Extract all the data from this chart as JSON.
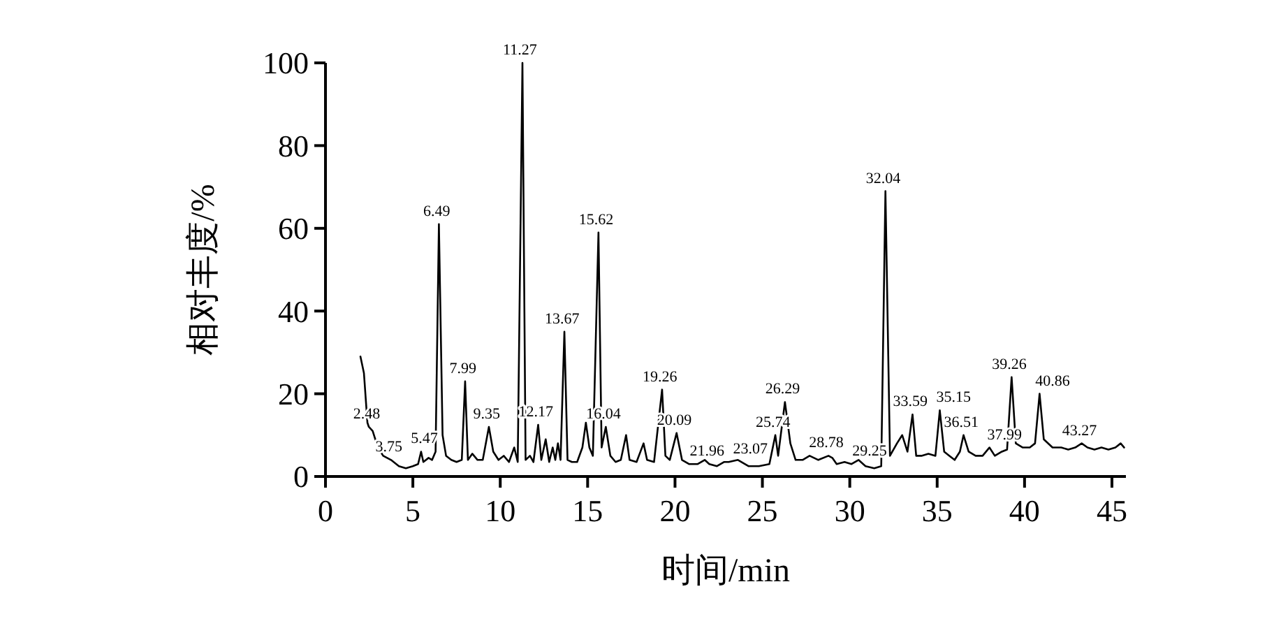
{
  "chart_data": {
    "type": "line",
    "xlabel": "时间/min",
    "ylabel": "相对丰度/%",
    "xlim": [
      0,
      45.8
    ],
    "xticks": [
      0,
      5,
      10,
      15,
      20,
      25,
      30,
      35,
      40,
      45
    ],
    "ylim": [
      0,
      100
    ],
    "yticks": [
      0,
      20,
      40,
      60,
      80,
      100
    ],
    "grid": false,
    "marker": "none",
    "line_style": "solid",
    "series": [
      {
        "color": "#000000",
        "x": [
          2.0,
          2.2,
          2.4,
          2.48,
          2.7,
          3.0,
          3.3,
          3.75,
          4.2,
          4.6,
          5.0,
          5.3,
          5.47,
          5.6,
          5.9,
          6.1,
          6.3,
          6.49,
          6.7,
          6.9,
          7.2,
          7.5,
          7.8,
          7.99,
          8.15,
          8.4,
          8.7,
          9.0,
          9.35,
          9.6,
          9.9,
          10.2,
          10.5,
          10.8,
          11.0,
          11.27,
          11.45,
          11.7,
          11.9,
          12.17,
          12.35,
          12.6,
          12.8,
          13.0,
          13.15,
          13.3,
          13.45,
          13.67,
          13.85,
          14.1,
          14.4,
          14.7,
          14.9,
          15.1,
          15.3,
          15.62,
          15.8,
          16.04,
          16.3,
          16.6,
          16.9,
          17.2,
          17.4,
          17.8,
          18.2,
          18.4,
          18.8,
          19.26,
          19.45,
          19.7,
          20.09,
          20.4,
          20.8,
          21.3,
          21.7,
          21.96,
          22.4,
          22.8,
          23.07,
          23.6,
          24.2,
          24.8,
          25.4,
          25.74,
          25.9,
          26.29,
          26.6,
          26.9,
          27.3,
          27.7,
          28.2,
          28.78,
          29.0,
          29.25,
          29.7,
          30.1,
          30.5,
          30.9,
          31.4,
          31.8,
          32.04,
          32.3,
          32.7,
          33.0,
          33.3,
          33.59,
          33.8,
          34.1,
          34.5,
          34.9,
          35.15,
          35.4,
          35.7,
          36.0,
          36.3,
          36.51,
          36.8,
          37.2,
          37.6,
          37.99,
          38.3,
          38.7,
          39.0,
          39.26,
          39.5,
          39.9,
          40.3,
          40.6,
          40.86,
          41.1,
          41.6,
          42.1,
          42.5,
          42.9,
          43.27,
          43.6,
          44.0,
          44.4,
          44.8,
          45.2,
          45.5,
          45.7
        ],
        "values": [
          29,
          25,
          13,
          12,
          11,
          7,
          5,
          4,
          2.5,
          2,
          2.5,
          3,
          6,
          3.5,
          4.5,
          4,
          6,
          61,
          10,
          5,
          4,
          3.5,
          4,
          23,
          4,
          5.5,
          4,
          4,
          12,
          6,
          4,
          5,
          3.5,
          7,
          3.5,
          100,
          4,
          5,
          3.5,
          12.5,
          4,
          9,
          3.5,
          7,
          4,
          8,
          4,
          35,
          4,
          3.5,
          3.5,
          7,
          13,
          7,
          5,
          59,
          7,
          12,
          5,
          3.5,
          4,
          10,
          4,
          3.5,
          8,
          4,
          3.5,
          21,
          5,
          4,
          10.5,
          4,
          3,
          3,
          4,
          3,
          2.5,
          3.5,
          3.5,
          4,
          2.5,
          2.5,
          3,
          10,
          5,
          18,
          8,
          4,
          4,
          5,
          4,
          5,
          4.5,
          3,
          3.5,
          3,
          4,
          2.5,
          2,
          2.5,
          69,
          5,
          8,
          10,
          6,
          15,
          5,
          5,
          5.5,
          5,
          16,
          6,
          5,
          4,
          6,
          10,
          6,
          5,
          5,
          7,
          5,
          6,
          6.5,
          24,
          8,
          7,
          7,
          8,
          20,
          9,
          7,
          7,
          6.5,
          7,
          8,
          7,
          6.5,
          7,
          6.5,
          7,
          8,
          7
        ]
      }
    ],
    "annotations": [
      {
        "text": "2.48",
        "x": 2.48,
        "y": 12
      },
      {
        "text": "3.75",
        "x": 3.75,
        "y": 4
      },
      {
        "text": "5.47",
        "x": 5.47,
        "y": 6
      },
      {
        "text": "6.49",
        "x": 6.49,
        "y": 61
      },
      {
        "text": "7.99",
        "x": 7.99,
        "y": 23
      },
      {
        "text": "9.35",
        "x": 9.35,
        "y": 12
      },
      {
        "text": "11.27",
        "x": 11.27,
        "y": 100
      },
      {
        "text": "12.17",
        "x": 12.17,
        "y": 12.5
      },
      {
        "text": "13.67",
        "x": 13.67,
        "y": 35
      },
      {
        "text": "15.62",
        "x": 15.62,
        "y": 59
      },
      {
        "text": "16.04",
        "x": 16.04,
        "y": 12
      },
      {
        "text": "19.26",
        "x": 19.26,
        "y": 21
      },
      {
        "text": "20.09",
        "x": 20.09,
        "y": 10.5
      },
      {
        "text": "21.96",
        "x": 21.96,
        "y": 3
      },
      {
        "text": "23.07",
        "x": 23.07,
        "y": 3.5
      },
      {
        "text": "25.74",
        "x": 25.74,
        "y": 10
      },
      {
        "text": "26.29",
        "x": 26.29,
        "y": 18
      },
      {
        "text": "28.78",
        "x": 28.78,
        "y": 5
      },
      {
        "text": "29.25",
        "x": 29.25,
        "y": 3
      },
      {
        "text": "32.04",
        "x": 32.04,
        "y": 69
      },
      {
        "text": "33.59",
        "x": 33.59,
        "y": 15
      },
      {
        "text": "35.15",
        "x": 35.15,
        "y": 16
      },
      {
        "text": "36.51",
        "x": 36.51,
        "y": 10
      },
      {
        "text": "37.99",
        "x": 37.99,
        "y": 7
      },
      {
        "text": "39.26",
        "x": 39.26,
        "y": 24
      },
      {
        "text": "40.86",
        "x": 40.86,
        "y": 20
      },
      {
        "text": "43.27",
        "x": 43.27,
        "y": 8
      }
    ]
  }
}
